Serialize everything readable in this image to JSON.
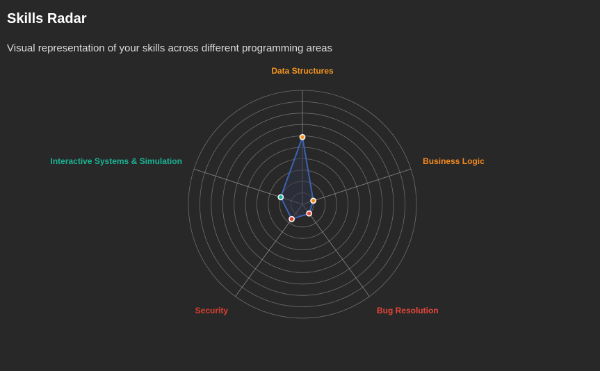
{
  "header": {
    "title": "Skills Radar",
    "subtitle": "Visual representation of your skills across different programming areas"
  },
  "colors": {
    "background": "#282828",
    "grid": "#6e6e6e",
    "series_line": "#3b63b0",
    "series_fill": "#2e3346"
  },
  "chart_data": {
    "type": "radar",
    "title": "",
    "rings": 10,
    "max": 10,
    "axes": [
      {
        "name": "Data Structures",
        "color": "#f5951f"
      },
      {
        "name": "Business Logic",
        "color": "#f28a20"
      },
      {
        "name": "Bug Resolution",
        "color": "#e8463a"
      },
      {
        "name": "Security",
        "color": "#d9402f"
      },
      {
        "name": "Interactive Systems & Simulation",
        "color": "#1ab394"
      }
    ],
    "series": [
      {
        "values": [
          5.9,
          1.0,
          1.0,
          1.6,
          2.0
        ]
      }
    ]
  }
}
